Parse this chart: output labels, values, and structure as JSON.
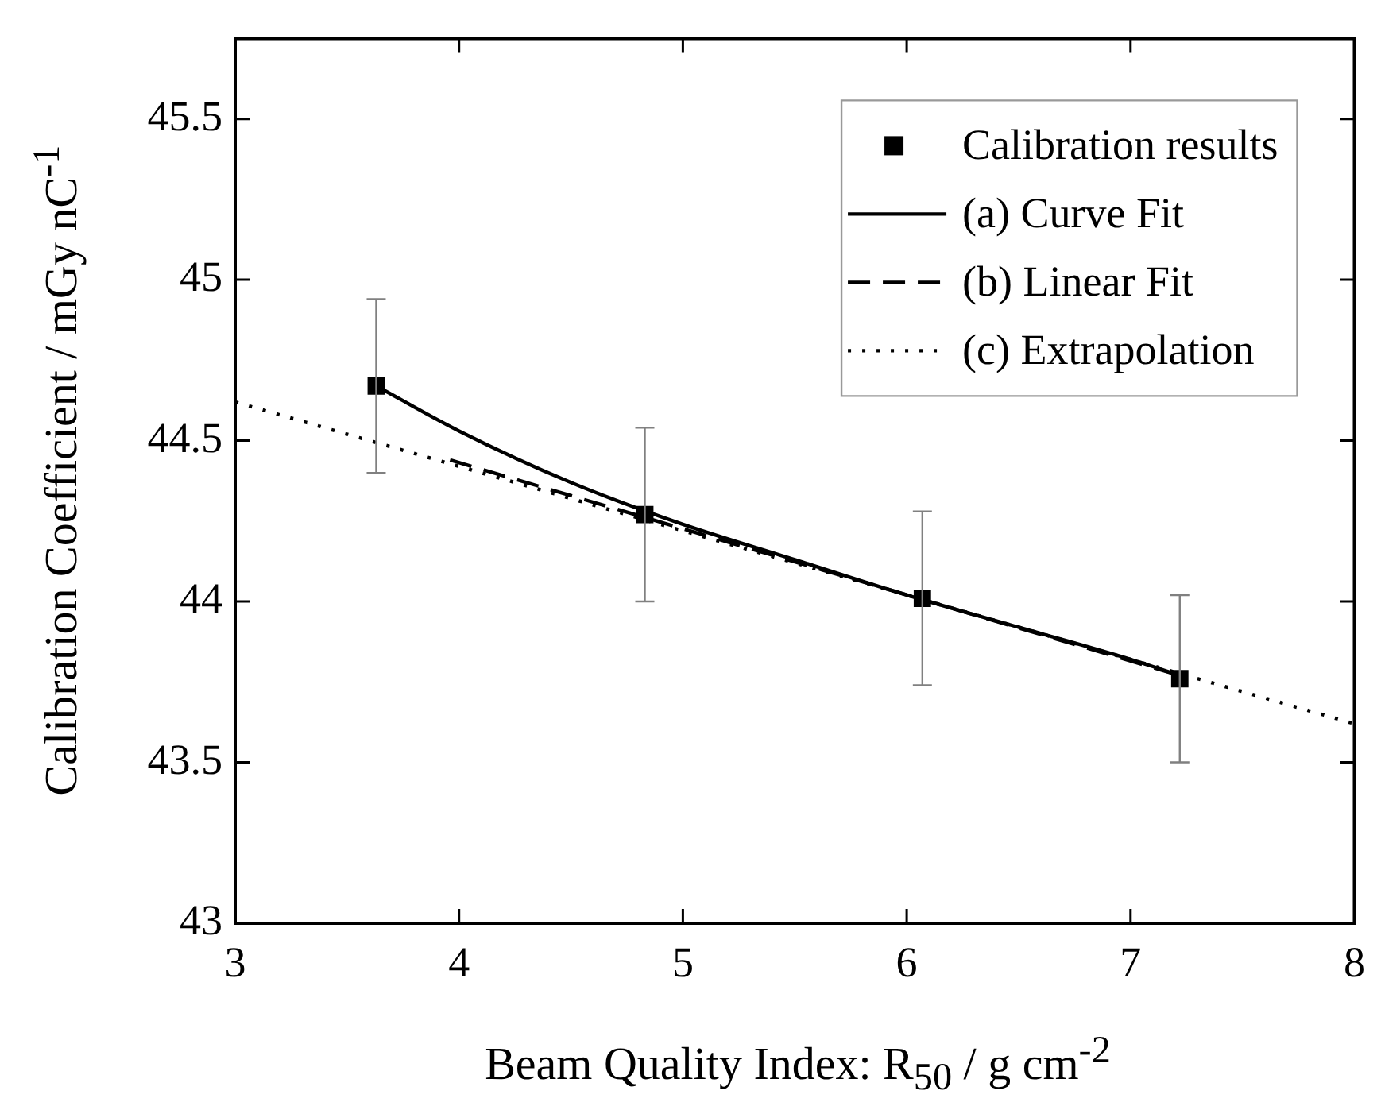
{
  "chart_data": {
    "type": "scatter",
    "xlabel": "Beam Quality Index: R$_{50}$ / g cm$^{-2}$",
    "ylabel": "Calibration Coefficient / mGy nC$^{-1}$",
    "xlim": [
      3,
      8
    ],
    "ylim": [
      43,
      45.75
    ],
    "xticks": [
      3,
      4,
      5,
      6,
      7,
      8
    ],
    "yticks": [
      43,
      43.5,
      44,
      44.5,
      45,
      45.5
    ],
    "grid": false,
    "legend": "top right",
    "series": [
      {
        "name": "Calibration results",
        "color": "#000000",
        "marker": "square",
        "x": [
          3.63,
          4.83,
          6.07,
          7.22
        ],
        "values": [
          44.67,
          44.27,
          44.01,
          43.76
        ],
        "errors": [
          0.27,
          0.27,
          0.27,
          0.26
        ]
      },
      {
        "name": "(a) Curve Fit",
        "type": "line",
        "color": "#000000",
        "line_style": "solid",
        "marker": "none",
        "x": [
          3.63,
          4.0,
          4.5,
          5.0,
          5.5,
          6.0,
          6.5,
          7.0,
          7.22
        ],
        "values": [
          44.67,
          44.53,
          44.37,
          44.24,
          44.13,
          44.02,
          43.92,
          43.82,
          43.77
        ]
      },
      {
        "name": "(b) Linear Fit",
        "type": "line",
        "color": "#000000",
        "line_style": "dashed",
        "marker": "none",
        "x": [
          3.96,
          7.22
        ],
        "values": [
          44.44,
          43.77
        ]
      },
      {
        "name": "(c) Extrapolation",
        "type": "line",
        "color": "#000000",
        "line_style": "dotted",
        "marker": "none",
        "x": [
          3,
          8
        ],
        "values": [
          44.62,
          43.62
        ]
      }
    ]
  }
}
